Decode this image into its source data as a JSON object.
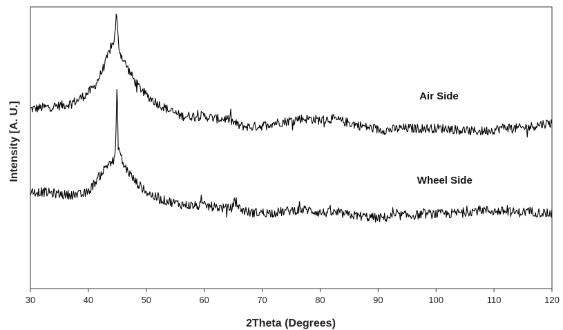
{
  "chart_data": {
    "type": "line",
    "title": "",
    "xlabel": "2Theta (Degrees)",
    "ylabel": "Intensity [A. U.]",
    "xlim": [
      30,
      120
    ],
    "xticks": [
      30,
      40,
      50,
      60,
      70,
      80,
      90,
      100,
      110,
      120
    ],
    "yticks_shown": false,
    "grid": false,
    "legend": "none",
    "line_color": "#000000",
    "series": [
      {
        "name": "Air Side",
        "label_anchor": [
          100.5,
          0.935
        ],
        "x": [
          30,
          32,
          34,
          36,
          38,
          40,
          41,
          42,
          43,
          43.8,
          44.3,
          44.6,
          44.85,
          45.1,
          45.4,
          46,
          47,
          48,
          50,
          52,
          54,
          56,
          58,
          60,
          62,
          64,
          66,
          68,
          70,
          72,
          74,
          76,
          78,
          80,
          82,
          84,
          86,
          88,
          90,
          92,
          94,
          96,
          98,
          100,
          102,
          104,
          106,
          108,
          110,
          112,
          114,
          116,
          118,
          120
        ],
        "y": [
          0.9,
          0.905,
          0.91,
          0.915,
          0.93,
          0.96,
          0.98,
          1.02,
          1.07,
          1.12,
          1.14,
          1.17,
          1.25,
          1.16,
          1.11,
          1.08,
          1.04,
          1.0,
          0.95,
          0.92,
          0.895,
          0.875,
          0.875,
          0.875,
          0.865,
          0.865,
          0.84,
          0.835,
          0.84,
          0.85,
          0.855,
          0.865,
          0.865,
          0.86,
          0.865,
          0.855,
          0.845,
          0.835,
          0.825,
          0.825,
          0.83,
          0.83,
          0.83,
          0.83,
          0.83,
          0.825,
          0.82,
          0.82,
          0.825,
          0.835,
          0.83,
          0.835,
          0.845,
          0.85
        ]
      },
      {
        "name": "Wheel Side",
        "label_anchor": [
          101.5,
          0.63
        ],
        "x": [
          30,
          32,
          34,
          36,
          38,
          39,
          40,
          41,
          42,
          43,
          43.8,
          44.4,
          44.75,
          44.95,
          45.15,
          45.5,
          46,
          47,
          48,
          50,
          52,
          54,
          56,
          58,
          60,
          62,
          64,
          65,
          65.4,
          65.8,
          66.5,
          68,
          70,
          72,
          74,
          76,
          78,
          80,
          82,
          84,
          86,
          88,
          90,
          92,
          94,
          96,
          98,
          100,
          102,
          104,
          106,
          108,
          110,
          112,
          114,
          116,
          118,
          120
        ],
        "y": [
          0.6,
          0.6,
          0.595,
          0.59,
          0.59,
          0.59,
          0.6,
          0.63,
          0.66,
          0.69,
          0.71,
          0.71,
          0.77,
          1.0,
          0.77,
          0.74,
          0.7,
          0.67,
          0.64,
          0.6,
          0.575,
          0.565,
          0.555,
          0.55,
          0.55,
          0.545,
          0.54,
          0.545,
          0.585,
          0.545,
          0.535,
          0.525,
          0.525,
          0.525,
          0.53,
          0.535,
          0.535,
          0.525,
          0.525,
          0.52,
          0.515,
          0.51,
          0.505,
          0.51,
          0.515,
          0.515,
          0.52,
          0.52,
          0.52,
          0.525,
          0.53,
          0.535,
          0.53,
          0.53,
          0.525,
          0.53,
          0.525,
          0.52
        ]
      }
    ]
  }
}
